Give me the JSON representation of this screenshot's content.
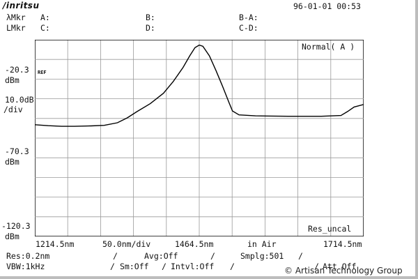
{
  "header": {
    "brand": "/inritsu",
    "datetime": "96-01-01 00:53",
    "marker_row1": {
      "label": "λMkr",
      "a": "A:",
      "b": "B:",
      "ba": "B-A:"
    },
    "marker_row2": {
      "label": "LMkr",
      "c": "C:",
      "d": "D:",
      "cd": "C-D:"
    }
  },
  "display": {
    "mode_box": "Normal( A )",
    "res_box": "Res_uncal",
    "ref_marker": "REF"
  },
  "y_axis": {
    "ref_level": "-20.3",
    "ref_unit": "dBm",
    "scale": "10.0dB",
    "scale_unit": "/div",
    "mid_level": "-70.3",
    "mid_unit": "dBm",
    "bottom_level": "-120.3",
    "bottom_unit": "dBm"
  },
  "x_axis": {
    "start": "1214.5nm",
    "span_per_div": "50.0nm/div",
    "center": "1464.5nm",
    "medium": "in Air",
    "stop": "1714.5nm"
  },
  "footer": {
    "res": "Res:0.2nm",
    "avg": "Avg:Off",
    "smplg": "Smplg:501",
    "vbw": "VBW:1kHz",
    "sm": "Sm:Off",
    "intvl": "Intvl:Off",
    "att": "Att Off"
  },
  "watermark": "© Artisan Technology Group",
  "chart_data": {
    "type": "line",
    "x_unit": "nm",
    "y_unit": "dBm",
    "xlim": [
      1214.5,
      1714.5
    ],
    "ylim": [
      -120.3,
      -20.3
    ],
    "grid": true,
    "series": [
      {
        "x": [
          1214.5,
          1235,
          1255,
          1275,
          1300,
          1320,
          1340,
          1355,
          1370,
          1390,
          1410,
          1425,
          1440,
          1450,
          1458,
          1464.5,
          1470,
          1480,
          1490,
          1500,
          1510,
          1515,
          1525,
          1550,
          1600,
          1650,
          1680,
          1690,
          1700,
          1714.5
        ],
        "y": [
          -63.5,
          -64.0,
          -64.3,
          -64.3,
          -64.1,
          -63.8,
          -62.5,
          -60.0,
          -56.8,
          -52.8,
          -47.5,
          -41.5,
          -34.3,
          -28.5,
          -24.3,
          -23.0,
          -23.6,
          -28.5,
          -36.0,
          -44.0,
          -52.5,
          -56.5,
          -58.5,
          -59.0,
          -59.2,
          -59.2,
          -58.8,
          -56.8,
          -54.5,
          -53.2
        ]
      }
    ]
  }
}
